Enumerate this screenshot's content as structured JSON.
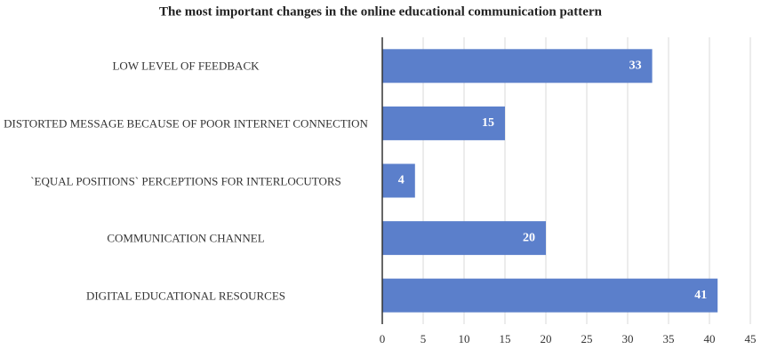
{
  "chart_data": {
    "type": "bar",
    "orientation": "horizontal",
    "title": "The most important  changes in the online educational communication  pattern",
    "categories": [
      "LOW LEVEL OF FEEDBACK",
      "DISTORTED  MESSAGE BECAUSE OF POOR INTERNET CONNECTION",
      "`EQUAL POSITIONS` PERCEPTIONS FOR INTERLOCUTORS",
      "COMMUNICATION  CHANNEL",
      "DIGITAL  EDUCATIONAL  RESOURCES"
    ],
    "values": [
      33,
      15,
      4,
      20,
      41
    ],
    "color": "#5b7fcb",
    "xlim": [
      0,
      45
    ],
    "xticks": [
      0,
      5,
      10,
      15,
      20,
      25,
      30,
      35,
      40,
      45
    ],
    "grid": true
  }
}
